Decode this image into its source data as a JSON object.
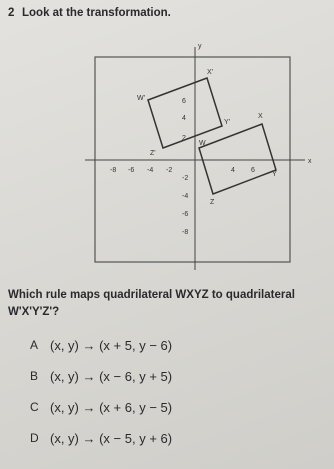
{
  "question": {
    "number": "2",
    "prompt": "Look at the transformation.",
    "graph": {
      "x_axis_label": "x",
      "y_axis_label": "y",
      "x_tick_labels": [
        "-8",
        "-6",
        "-4",
        "-2",
        "4",
        "6"
      ],
      "y_tick_labels": [
        "6",
        "4",
        "2",
        "-2",
        "-4",
        "-6",
        "-8"
      ],
      "vertex_labels": [
        "W'",
        "X'",
        "Y'",
        "Z'",
        "W",
        "X",
        "Y",
        "Z"
      ]
    },
    "text": "Which rule maps quadrilateral WXYZ to quadrilateral W'X'Y'Z'?",
    "options": [
      {
        "letter": "A",
        "rule": "(x, y) → (x + 5, y − 6)"
      },
      {
        "letter": "B",
        "rule": "(x, y) → (x − 6, y + 5)"
      },
      {
        "letter": "C",
        "rule": "(x, y) → (x + 6, y − 5)"
      },
      {
        "letter": "D",
        "rule": "(x, y) → (x − 5, y + 6)"
      }
    ]
  }
}
